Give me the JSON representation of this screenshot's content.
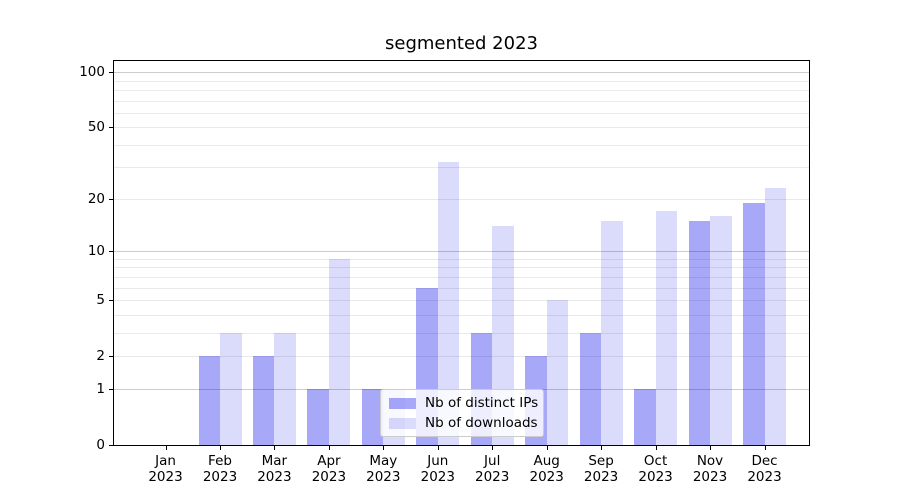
{
  "chart_data": {
    "type": "bar",
    "title": "segmented 2023",
    "categories": [
      "Jan",
      "Feb",
      "Mar",
      "Apr",
      "May",
      "Jun",
      "Jul",
      "Aug",
      "Sep",
      "Oct",
      "Nov",
      "Dec"
    ],
    "category_year_line": "2023",
    "series": [
      {
        "name": "Nb of distinct IPs",
        "color": "rgba(0,0,235,0.34)",
        "values": [
          0,
          2,
          2,
          1,
          1,
          6,
          3,
          2,
          3,
          1,
          15,
          19
        ]
      },
      {
        "name": "Nb of downloads",
        "color": "rgba(0,0,235,0.14)",
        "values": [
          0,
          3,
          3,
          9,
          1,
          32,
          14,
          5,
          15,
          17,
          16,
          23
        ]
      }
    ],
    "xlabel": "",
    "ylabel": "",
    "yscale": "log-like (log of 1+value), linear segment 0 to 1",
    "y_ticks": [
      0,
      1,
      2,
      5,
      10,
      20,
      50,
      100
    ],
    "y_tick_labels": [
      "0",
      "1",
      "2",
      "5",
      "10",
      "20",
      "50",
      "100"
    ],
    "ylim": [
      0,
      114
    ],
    "grid": true,
    "major_gridline_values": [
      1,
      10,
      100
    ],
    "minor_gridline_values": [
      2,
      3,
      4,
      5,
      6,
      7,
      8,
      9,
      20,
      30,
      40,
      50,
      60,
      70,
      80,
      90
    ],
    "legend_position": "lower center, inside axes",
    "colors": {
      "background": "#ffffff",
      "spine": "#000000",
      "text": "#000000",
      "major_gridline": "#cccccc",
      "minor_gridline": "#e9e9e9",
      "legend_border": "#cccccc"
    }
  }
}
